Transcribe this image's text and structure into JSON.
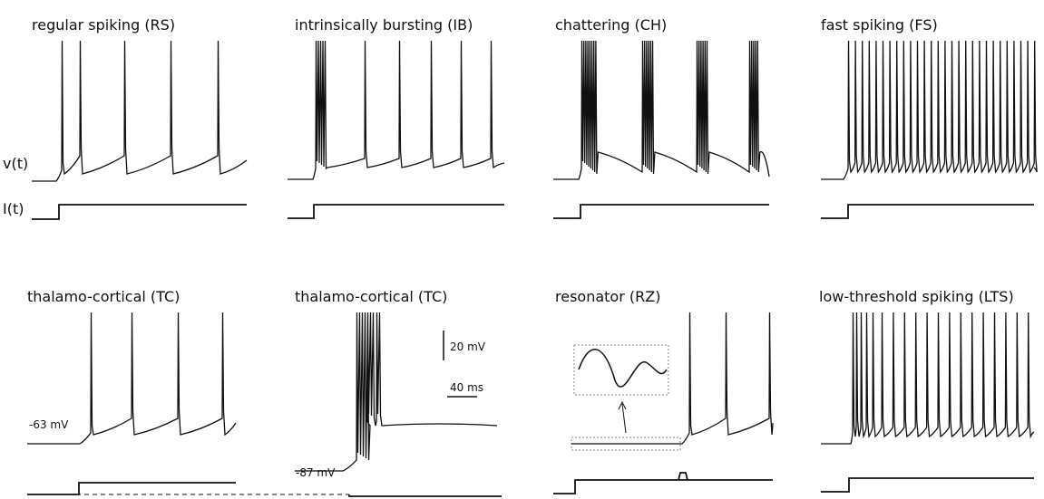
{
  "panels": [
    {
      "title": "regular spiking (RS)"
    },
    {
      "title": "intrinsically bursting (IB)"
    },
    {
      "title": "chattering (CH)"
    },
    {
      "title": "fast spiking (FS)"
    },
    {
      "title": "thalamo-cortical (TC)"
    },
    {
      "title": "thalamo-cortical (TC)"
    },
    {
      "title": "resonator (RZ)"
    },
    {
      "title": "low-threshold spiking (LTS)"
    }
  ],
  "labels": {
    "voltage": "v(t)",
    "current": "I(t)"
  },
  "annotations": {
    "rest_tc1": "-63 mV",
    "rest_tc2": "-87 mV",
    "scale_v": "20 mV",
    "scale_t": "40 ms"
  }
}
